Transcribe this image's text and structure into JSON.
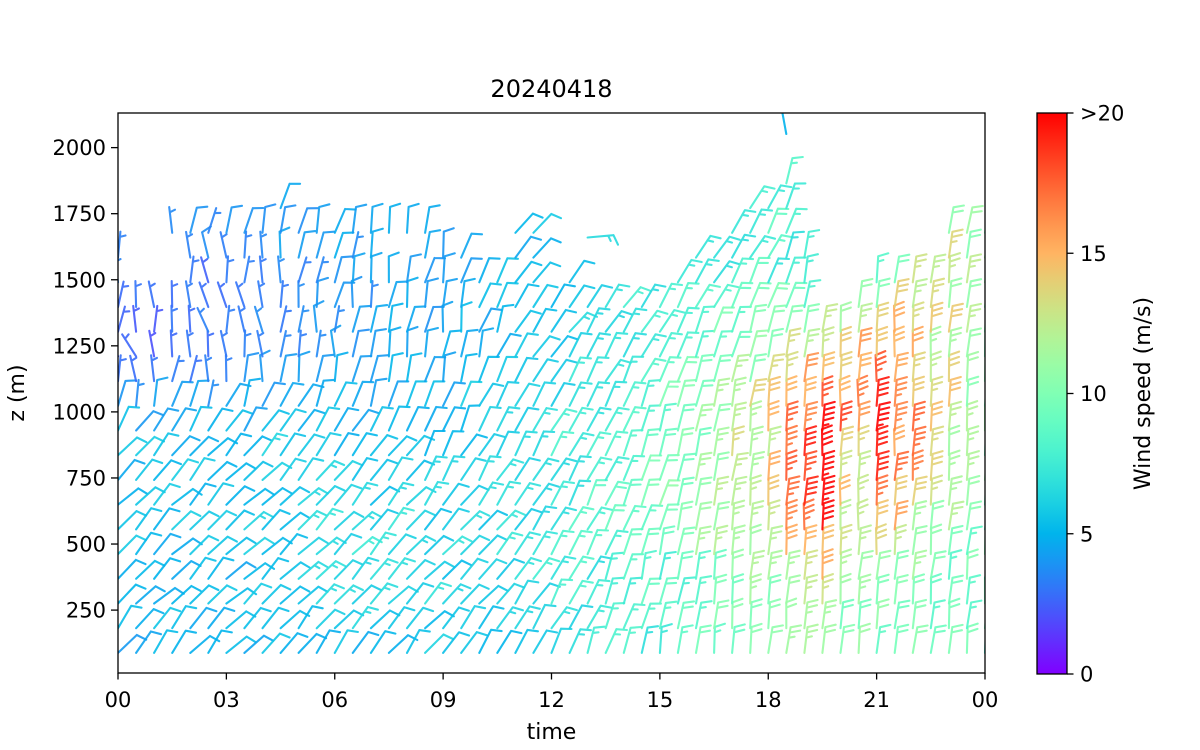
{
  "title": "20240418",
  "axes": {
    "xlabel": "time",
    "ylabel": "z (m)",
    "x_tick_labels": [
      "00",
      "03",
      "06",
      "09",
      "12",
      "15",
      "18",
      "21",
      "00"
    ],
    "x_tick_hours": [
      0,
      3,
      6,
      9,
      12,
      15,
      18,
      21,
      24
    ],
    "y_tick_labels": [
      "250",
      "500",
      "750",
      "1000",
      "1250",
      "1500",
      "1750",
      "2000"
    ],
    "y_tick_values": [
      250,
      500,
      750,
      1000,
      1250,
      1500,
      1750,
      2000
    ],
    "x_range_hours": [
      0,
      24
    ],
    "z_range_m": [
      12,
      2131
    ]
  },
  "colorbar": {
    "label": "Wind speed (m/s)",
    "tick_labels": [
      "0",
      "5",
      "10",
      "15",
      ">20"
    ],
    "tick_values": [
      0,
      5,
      10,
      15,
      20
    ],
    "vmin": 0,
    "vmax": 20,
    "colormap": "rainbow"
  },
  "chart_data": {
    "type": "wind_barbs",
    "title": "20240418",
    "xlabel": "time",
    "ylabel": "z (m)",
    "speed_units": "m/s",
    "full_barb_ms": 5,
    "half_barb_ms": 2.5,
    "time_hours": {
      "start": 0,
      "step": 0.5,
      "count": 49
    },
    "height_m": {
      "start": 88,
      "step": 93.5,
      "count": 22
    },
    "control_times_h": [
      0,
      3,
      6,
      9,
      12,
      15,
      18,
      19.5,
      20.25,
      21,
      22.5,
      24
    ],
    "control_heights_m": [
      90,
      300,
      600,
      900,
      1200,
      1500,
      1800,
      2050
    ],
    "speed_ms_grid": [
      [
        4.8,
        4.8,
        5.5,
        5.5,
        6.3,
        8.0,
        10.0,
        10.5,
        10.5,
        10.0,
        9.0,
        9.0
      ],
      [
        5.2,
        5.2,
        6.5,
        6.3,
        7.0,
        8.5,
        11.0,
        12.0,
        10.0,
        10.5,
        9.5,
        9.0
      ],
      [
        5.5,
        5.5,
        6.2,
        6.2,
        7.2,
        9.5,
        14.0,
        19.0,
        10.5,
        16.0,
        12.0,
        9.5
      ],
      [
        5.0,
        5.2,
        5.5,
        5.0,
        7.0,
        9.0,
        14.0,
        20.5,
        14.0,
        19.5,
        15.0,
        10.0
      ],
      [
        2.0,
        3.0,
        4.0,
        4.5,
        6.0,
        8.0,
        11.5,
        14.0,
        14.5,
        17.0,
        13.5,
        10.5
      ],
      [
        3.5,
        3.0,
        4.0,
        4.5,
        5.5,
        7.5,
        8.0,
        6.0,
        8.0,
        8.5,
        13.5,
        10.5
      ],
      [
        4.5,
        4.5,
        5.0,
        4.5,
        5.5,
        7.0,
        8.5,
        6.0,
        7.0,
        8.0,
        13.0,
        10.0
      ],
      [
        4.0,
        4.5,
        5.0,
        5.0,
        5.5,
        7.0,
        5.5,
        5.5,
        6.5,
        8.0,
        11.0,
        10.0
      ]
    ],
    "direction_deg_grid": [
      [
        50,
        50,
        52,
        52,
        62,
        80,
        85,
        85,
        85,
        85,
        85,
        85
      ],
      [
        47,
        45,
        48,
        45,
        60,
        80,
        85,
        85,
        85,
        85,
        85,
        85
      ],
      [
        45,
        45,
        48,
        50,
        58,
        75,
        86,
        88,
        88,
        88,
        86,
        85
      ],
      [
        55,
        50,
        52,
        65,
        58,
        75,
        86,
        88,
        88,
        88,
        86,
        85
      ],
      [
        100,
        100,
        85,
        85,
        55,
        65,
        80,
        86,
        88,
        88,
        86,
        85
      ],
      [
        85,
        97,
        80,
        80,
        48,
        55,
        65,
        80,
        85,
        85,
        85,
        82
      ],
      [
        80,
        78,
        75,
        75,
        38,
        48,
        60,
        85,
        85,
        85,
        85,
        80
      ],
      [
        80,
        78,
        75,
        75,
        30,
        45,
        100,
        95,
        85,
        85,
        85,
        80
      ]
    ],
    "max_height_by_column_m": [
      1590,
      1620,
      1620,
      1700,
      1700,
      1720,
      1720,
      1740,
      1740,
      1800,
      1740,
      1720,
      1720,
      1700,
      1720,
      1700,
      1710,
      1710,
      1660,
      1620,
      1540,
      1570,
      1710,
      1700,
      1420,
      1510,
      1420,
      1420,
      1480,
      1420,
      1470,
      1520,
      1620,
      1670,
      1720,
      1790,
      1820,
      2060,
      1590,
      1370,
      1370,
      1420,
      1540,
      1520,
      1500,
      1540,
      1700,
      1750,
      1740
    ],
    "gaps": [
      {
        "t": [
          0.2,
          1.9
        ],
        "z": [
          1450,
          1630
        ]
      },
      {
        "t": [
          7.4,
          8.1
        ],
        "z": [
          1520,
          1660
        ]
      },
      {
        "t": [
          18.2,
          18.8
        ],
        "z": [
          1880,
          2010
        ]
      }
    ],
    "extra_barbs": [
      {
        "t_h": 13.0,
        "z_m": 1660,
        "speed_ms": 6.5,
        "direction_deg": 5
      }
    ],
    "jitter": {
      "angle_base_deg": 55,
      "angle_min_deg": 5,
      "angle_max_deg": 40,
      "speed_frac": 0.14,
      "speed_abs": 0.3
    }
  }
}
